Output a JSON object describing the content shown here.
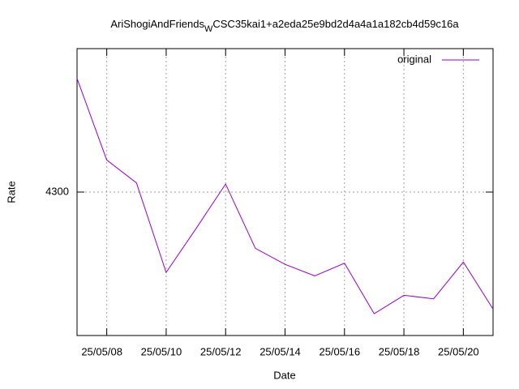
{
  "chart_data": {
    "type": "line",
    "title": [
      "AriShogiAndFriends",
      "W",
      "CSC35kai1+a2eda25e9bd2d4a4a1a182cb4d59c16a"
    ],
    "x_label": "Date",
    "y_label": "Rate",
    "x": [
      "25/05/07",
      "25/05/08",
      "25/05/09",
      "25/05/10",
      "25/05/11",
      "25/05/12",
      "25/05/13",
      "25/05/14",
      "25/05/15",
      "25/05/16",
      "25/05/17",
      "25/05/18",
      "25/05/19",
      "25/05/20",
      "25/05/21"
    ],
    "series": [
      {
        "name": "original",
        "color": "#9400d3",
        "values": [
          4399,
          4328,
          4308,
          4230,
          4268,
          4307,
          4251,
          4237,
          4227,
          4238,
          4194,
          4210,
          4207,
          4239,
          4198
        ]
      }
    ],
    "xlim": [
      "25/05/07",
      "25/05/21"
    ],
    "xticks": [
      "25/05/08",
      "25/05/10",
      "25/05/12",
      "25/05/14",
      "25/05/16",
      "25/05/18",
      "25/05/20"
    ],
    "ylim": [
      4175,
      4425
    ],
    "yticks": [
      4300
    ],
    "grid": true,
    "legend": "top-right"
  }
}
